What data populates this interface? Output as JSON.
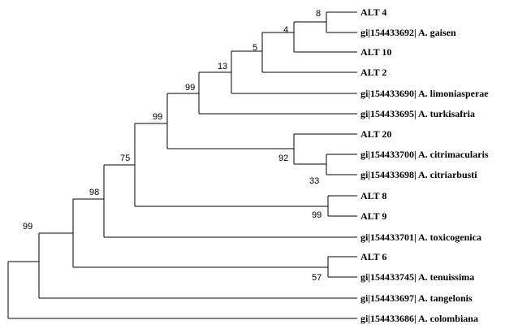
{
  "tree": {
    "taxa": [
      {
        "id": "t1",
        "label": "ALT 4"
      },
      {
        "id": "t2",
        "label": "gi|154433692| A. gaisen"
      },
      {
        "id": "t3",
        "label": "ALT 10"
      },
      {
        "id": "t4",
        "label": "ALT 2"
      },
      {
        "id": "t5",
        "label": "gi|154433690| A. limoniasperae"
      },
      {
        "id": "t6",
        "label": "gi|154433695| A. turkisafria"
      },
      {
        "id": "t7",
        "label": "ALT 20"
      },
      {
        "id": "t8",
        "label": "gi|154433700| A. citrimacularis"
      },
      {
        "id": "t9",
        "label": "gi|154433698| A. citriarbusti"
      },
      {
        "id": "t10",
        "label": "ALT 8"
      },
      {
        "id": "t11",
        "label": "ALT 9"
      },
      {
        "id": "t12",
        "label": "gi|154433701| A. toxicogenica"
      },
      {
        "id": "t13",
        "label": "ALT 6"
      },
      {
        "id": "t14",
        "label": "gi|154433745| A. tenuissima"
      },
      {
        "id": "t15",
        "label": "gi|154433697| A. tangelonis"
      },
      {
        "id": "t16",
        "label": "gi|154433686| A. colombiana"
      }
    ],
    "bootstrap_values": [
      {
        "clade": "alt4-gaisen",
        "value": "8"
      },
      {
        "clade": "gaisen-group-alt10",
        "value": "4"
      },
      {
        "clade": "with-alt2",
        "value": "5"
      },
      {
        "clade": "with-limoniasperae",
        "value": "13"
      },
      {
        "clade": "with-turkisafria",
        "value": "99"
      },
      {
        "clade": "citri-group",
        "value": "92"
      },
      {
        "clade": "citrimacularis-citriarbusti",
        "value": "33"
      },
      {
        "clade": "core-clade",
        "value": "99"
      },
      {
        "clade": "alt8-alt9",
        "value": "99"
      },
      {
        "clade": "with-alt8-alt9",
        "value": "75"
      },
      {
        "clade": "with-toxicogenica",
        "value": "98"
      },
      {
        "clade": "alt6-tenuissima",
        "value": "57"
      },
      {
        "clade": "with-tenuissima-group",
        "value": "99"
      }
    ]
  }
}
